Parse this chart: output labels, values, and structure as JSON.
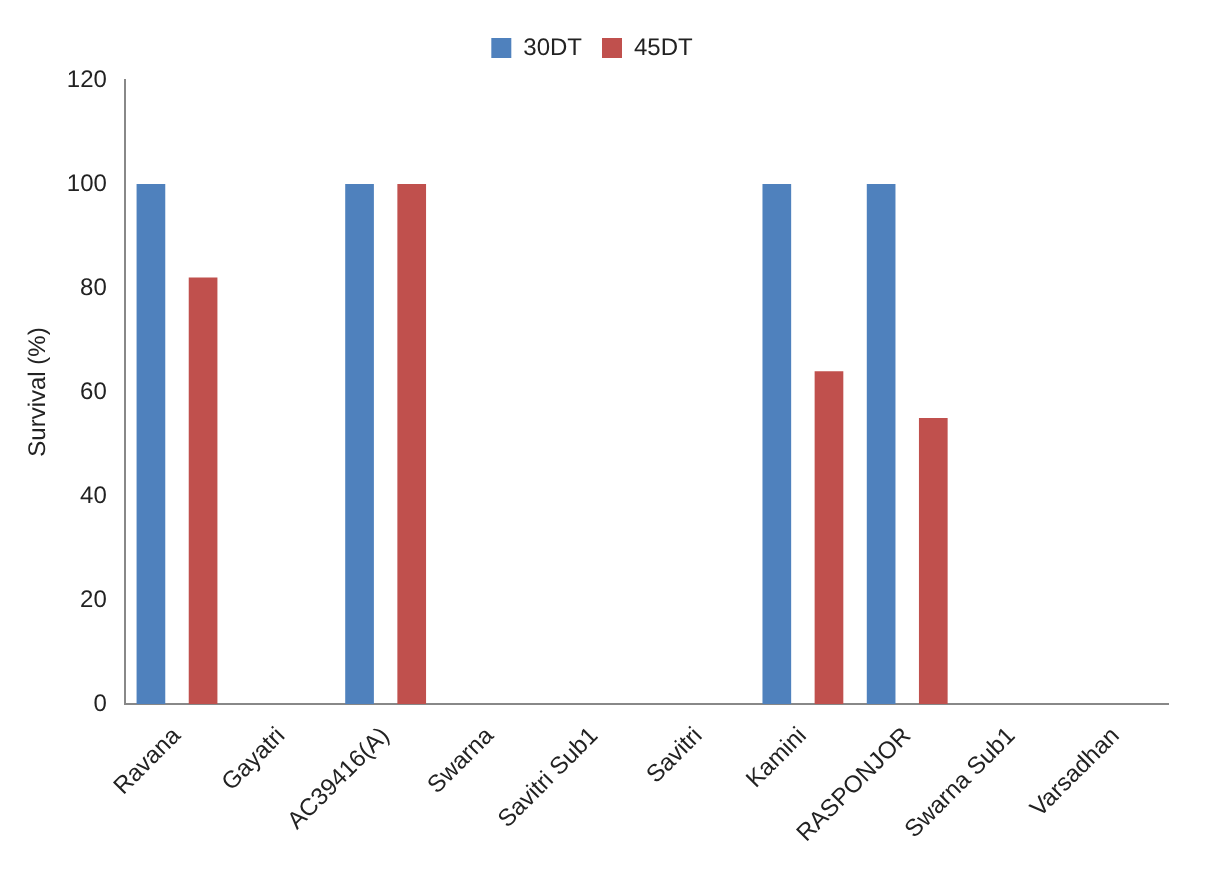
{
  "chart_data": {
    "type": "bar",
    "ylabel": "Survival (%)",
    "categories": [
      "Ravana",
      "Gayatri",
      "AC39416(A)",
      "Swarna",
      "Savitri Sub1",
      "Savitri",
      "Kamini",
      "RASPONJOR",
      "Swarna Sub1",
      "Varsadhan"
    ],
    "series": [
      {
        "name": "30DT",
        "color": "#4f81bd",
        "values": [
          100,
          0,
          100,
          0,
          0,
          0,
          100,
          100,
          0,
          0
        ]
      },
      {
        "name": "45DT",
        "color": "#c0504d",
        "values": [
          82,
          0,
          100,
          0,
          0,
          0,
          64,
          55,
          0,
          0
        ]
      }
    ],
    "ylim": [
      0,
      120
    ],
    "yticks": [
      0,
      20,
      40,
      60,
      80,
      100,
      120
    ],
    "grid": false,
    "legend": "top"
  }
}
